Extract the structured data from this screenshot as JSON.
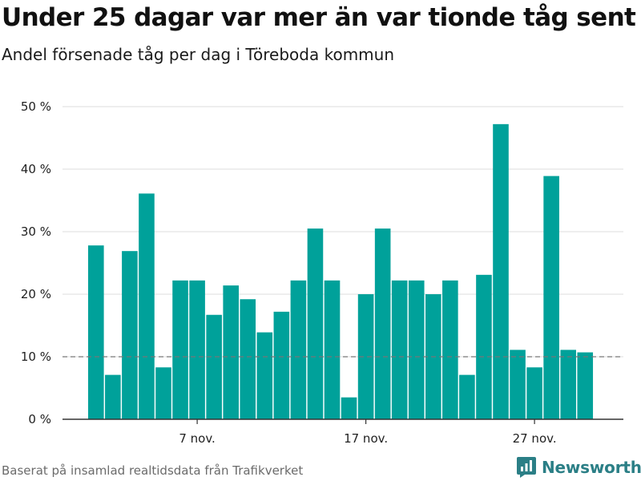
{
  "title": "Under 25 dagar var mer än var tionde tåg sent",
  "subtitle": "Andel försenade tåg per dag i Töreboda kommun",
  "footer": "Baserat på insamlad realtidsdata från Trafikverket",
  "brand": {
    "name": "Newsworthy",
    "icon": "bar-chart-logo-icon",
    "color": "#2b7f86"
  },
  "colors": {
    "bar": "#00a19a",
    "grid": "#dddddd",
    "axis": "#333333",
    "reference_line": "#777777"
  },
  "chart_data": {
    "type": "bar",
    "title": "Under 25 dagar var mer än var tionde tåg sent",
    "subtitle": "Andel försenade tåg per dag i Töreboda kommun",
    "xlabel": "",
    "ylabel": "",
    "ylim": [
      0,
      50
    ],
    "yticks": [
      0,
      10,
      20,
      30,
      40,
      50
    ],
    "ytick_labels": [
      "0 %",
      "10 %",
      "20 %",
      "30 %",
      "40 %",
      "50 %"
    ],
    "xticks": [
      {
        "date": "2020-11-07",
        "label": "7 nov."
      },
      {
        "date": "2020-11-17",
        "label": "17 nov."
      },
      {
        "date": "2020-11-27",
        "label": "27 nov."
      }
    ],
    "grid": true,
    "reference_line": {
      "value": 10,
      "style": "dashed"
    },
    "dates": [
      "2020-11-01",
      "2020-11-02",
      "2020-11-03",
      "2020-11-04",
      "2020-11-05",
      "2020-11-06",
      "2020-11-07",
      "2020-11-08",
      "2020-11-09",
      "2020-11-10",
      "2020-11-11",
      "2020-11-12",
      "2020-11-13",
      "2020-11-14",
      "2020-11-15",
      "2020-11-16",
      "2020-11-17",
      "2020-11-18",
      "2020-11-19",
      "2020-11-20",
      "2020-11-21",
      "2020-11-22",
      "2020-11-23",
      "2020-11-24",
      "2020-11-25",
      "2020-11-26",
      "2020-11-27",
      "2020-11-28",
      "2020-11-29",
      "2020-11-30"
    ],
    "values": [
      27.8,
      7.1,
      26.9,
      36.1,
      8.3,
      22.2,
      22.2,
      16.7,
      21.4,
      19.2,
      13.9,
      17.2,
      22.2,
      30.5,
      22.2,
      3.5,
      20.0,
      30.5,
      22.2,
      22.2,
      20.0,
      22.2,
      7.1,
      23.1,
      47.2,
      11.1,
      8.3,
      38.9,
      11.1,
      10.7
    ]
  }
}
